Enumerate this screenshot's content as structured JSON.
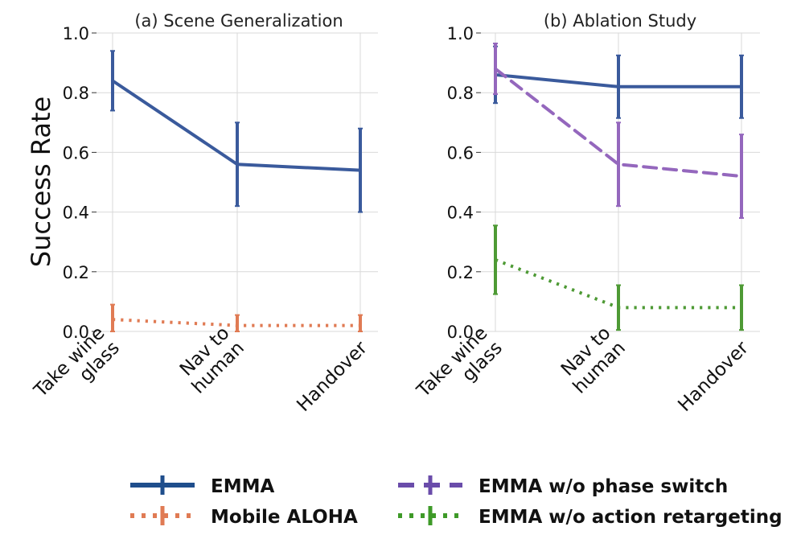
{
  "chart_data": {
    "type": "line",
    "ylabel": "Success Rate",
    "ylim": [
      0,
      1.0
    ],
    "yticks": [
      "0.0",
      "0.2",
      "0.4",
      "0.6",
      "0.8",
      "1.0"
    ],
    "yticks_values": [
      0.0,
      0.2,
      0.4,
      0.6,
      0.8,
      1.0
    ],
    "categories": [
      [
        "Take wine",
        "glass"
      ],
      [
        "Nav to",
        "human"
      ],
      [
        "Handover"
      ]
    ],
    "panels": [
      {
        "title": "(a) Scene Generalization",
        "series": [
          {
            "name": "EMMA",
            "color": "#3a5a9c",
            "style": "solid",
            "values": [
              0.84,
              0.56,
              0.54
            ],
            "err": [
              0.1,
              0.14,
              0.14
            ]
          },
          {
            "name": "Mobile ALOHA",
            "color": "#e07b54",
            "style": "dotted",
            "values": [
              0.04,
              0.02,
              0.02
            ],
            "err": [
              0.05,
              0.035,
              0.035
            ]
          }
        ]
      },
      {
        "title": "(b) Ablation Study",
        "series": [
          {
            "name": "EMMA",
            "color": "#3a5a9c",
            "style": "solid",
            "values": [
              0.86,
              0.82,
              0.82
            ],
            "err": [
              0.095,
              0.105,
              0.105
            ]
          },
          {
            "name": "EMMA w/o phase switch",
            "color": "#9467bd",
            "style": "dashed",
            "values": [
              0.88,
              0.56,
              0.52
            ],
            "err": [
              0.085,
              0.14,
              0.14
            ]
          },
          {
            "name": "EMMA w/o action retargeting",
            "color": "#4e9a35",
            "style": "dotted",
            "values": [
              0.24,
              0.08,
              0.08
            ],
            "err": [
              0.115,
              0.075,
              0.075
            ]
          }
        ]
      }
    ],
    "legend": [
      {
        "label": "EMMA",
        "color": "#1f4e8c",
        "style": "solid"
      },
      {
        "label": "Mobile ALOHA",
        "color": "#e07b54",
        "style": "dotted"
      },
      {
        "label": "EMMA w/o phase switch",
        "color": "#6a4caa",
        "style": "dashed"
      },
      {
        "label": "EMMA w/o action retargeting",
        "color": "#3e9a28",
        "style": "dotted"
      }
    ],
    "legend_position": "bottom"
  }
}
